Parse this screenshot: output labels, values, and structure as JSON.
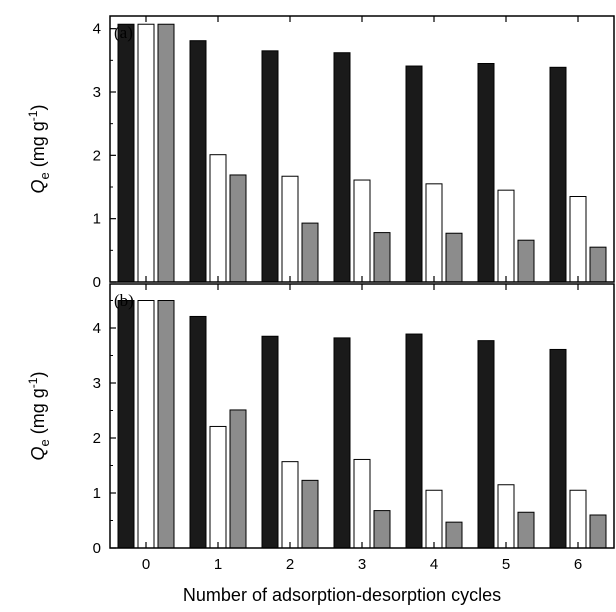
{
  "chart_data": [
    {
      "type": "bar",
      "panel_label": "(a)",
      "categories": [
        "0",
        "1",
        "2",
        "3",
        "4",
        "5",
        "6"
      ],
      "ylabel": {
        "symbol": "Q",
        "subscript": "e",
        "unit_open": " (mg g",
        "unit_sup": "-1",
        "unit_close": ")"
      },
      "ylim": [
        0,
        4.2
      ],
      "yticks": [
        "0",
        "1",
        "2",
        "3",
        "4"
      ],
      "series": [
        {
          "color": "#1a1a1a",
          "values": [
            4.07,
            3.81,
            3.65,
            3.62,
            3.41,
            3.45,
            3.39
          ]
        },
        {
          "color": "#ffffff",
          "values": [
            4.07,
            2.01,
            1.67,
            1.61,
            1.55,
            1.45,
            1.35
          ]
        },
        {
          "color": "#8c8c8c",
          "values": [
            4.07,
            1.69,
            0.93,
            0.78,
            0.77,
            0.66,
            0.55
          ]
        }
      ]
    },
    {
      "type": "bar",
      "panel_label": "(b)",
      "categories": [
        "0",
        "1",
        "2",
        "3",
        "4",
        "5",
        "6"
      ],
      "ylabel": {
        "symbol": "Q",
        "subscript": "e",
        "unit_open": " (mg g",
        "unit_sup": "-1",
        "unit_close": ")"
      },
      "xlabel": "Number of adsorption-desorption cycles",
      "ylim": [
        0,
        4.8
      ],
      "yticks": [
        "0",
        "1",
        "2",
        "3",
        "4"
      ],
      "series": [
        {
          "color": "#1a1a1a",
          "values": [
            4.5,
            4.21,
            3.85,
            3.82,
            3.89,
            3.77,
            3.61
          ]
        },
        {
          "color": "#ffffff",
          "values": [
            4.5,
            2.21,
            1.57,
            1.61,
            1.05,
            1.15,
            1.05
          ]
        },
        {
          "color": "#8c8c8c",
          "values": [
            4.5,
            2.51,
            1.23,
            0.68,
            0.47,
            0.65,
            0.6
          ]
        }
      ]
    }
  ]
}
